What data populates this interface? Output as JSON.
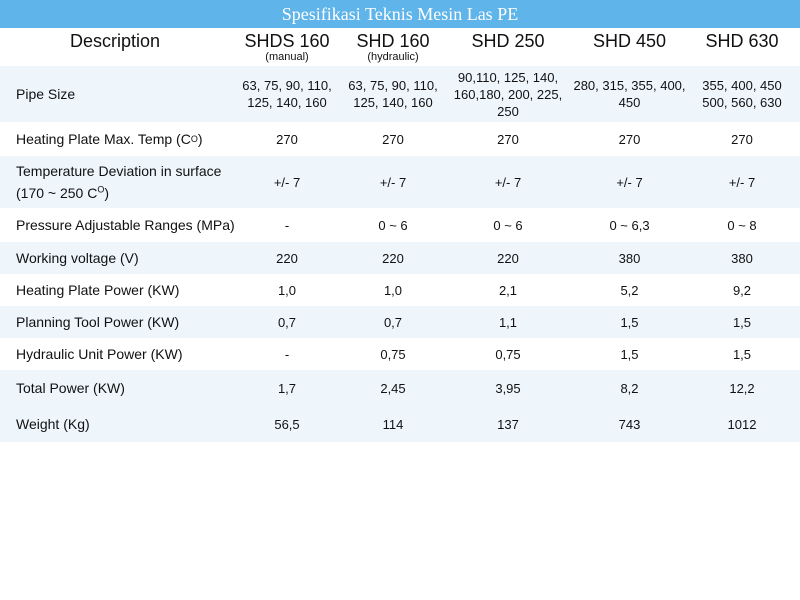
{
  "title": "Spesifikasi Teknis Mesin Las PE",
  "header": {
    "description": "Description",
    "models": [
      {
        "name": "SHDS 160",
        "sub": "(manual)"
      },
      {
        "name": "SHD 160",
        "sub": "(hydraulic)"
      },
      {
        "name": "SHD 250",
        "sub": ""
      },
      {
        "name": "SHD 450",
        "sub": ""
      },
      {
        "name": "SHD 630",
        "sub": ""
      }
    ]
  },
  "rows": [
    {
      "label": "Pipe Size",
      "values": [
        "63, 75, 90, 110, 125, 140, 160",
        "63, 75, 90, 110, 125, 140, 160",
        "90,110, 125, 140, 160,180, 200, 225, 250",
        "280, 315, 355, 400, 450",
        "355, 400, 450 500, 560, 630"
      ]
    },
    {
      "label_before": "Heating Plate Max. Temp (C",
      "label_sup": "O",
      "label_after": ")",
      "values": [
        "270",
        "270",
        "270",
        "270",
        "270"
      ]
    },
    {
      "label_line1": "Temperature Deviation in surface",
      "label_before": "(170 ~ 250 C",
      "label_sup": "O",
      "label_after": ")",
      "values": [
        "+/- 7",
        "+/- 7",
        "+/- 7",
        "+/- 7",
        "+/- 7"
      ]
    },
    {
      "label": "Pressure Adjustable Ranges (MPa)",
      "values": [
        "-",
        "0 ~ 6",
        "0 ~ 6",
        "0 ~ 6,3",
        "0 ~ 8"
      ]
    },
    {
      "label": "Working voltage (V)",
      "values": [
        "220",
        "220",
        "220",
        "380",
        "380"
      ]
    },
    {
      "label": "Heating Plate Power (KW)",
      "values": [
        "1,0",
        "1,0",
        "2,1",
        "5,2",
        "9,2"
      ]
    },
    {
      "label": "Planning Tool Power (KW)",
      "values": [
        "0,7",
        "0,7",
        "1,1",
        "1,5",
        "1,5"
      ]
    },
    {
      "label": "Hydraulic Unit Power (KW)",
      "values": [
        "-",
        "0,75",
        "0,75",
        "1,5",
        "1,5"
      ]
    },
    {
      "label": "Total Power (KW)",
      "values": [
        "1,7",
        "2,45",
        "3,95",
        "8,2",
        "12,2"
      ]
    },
    {
      "label": "Weight (Kg)",
      "values": [
        "56,5",
        "114",
        "137",
        "743",
        "1012"
      ]
    }
  ],
  "colors": {
    "title_bar": "#5fb4ea",
    "row_shade": "#eef6fc"
  }
}
